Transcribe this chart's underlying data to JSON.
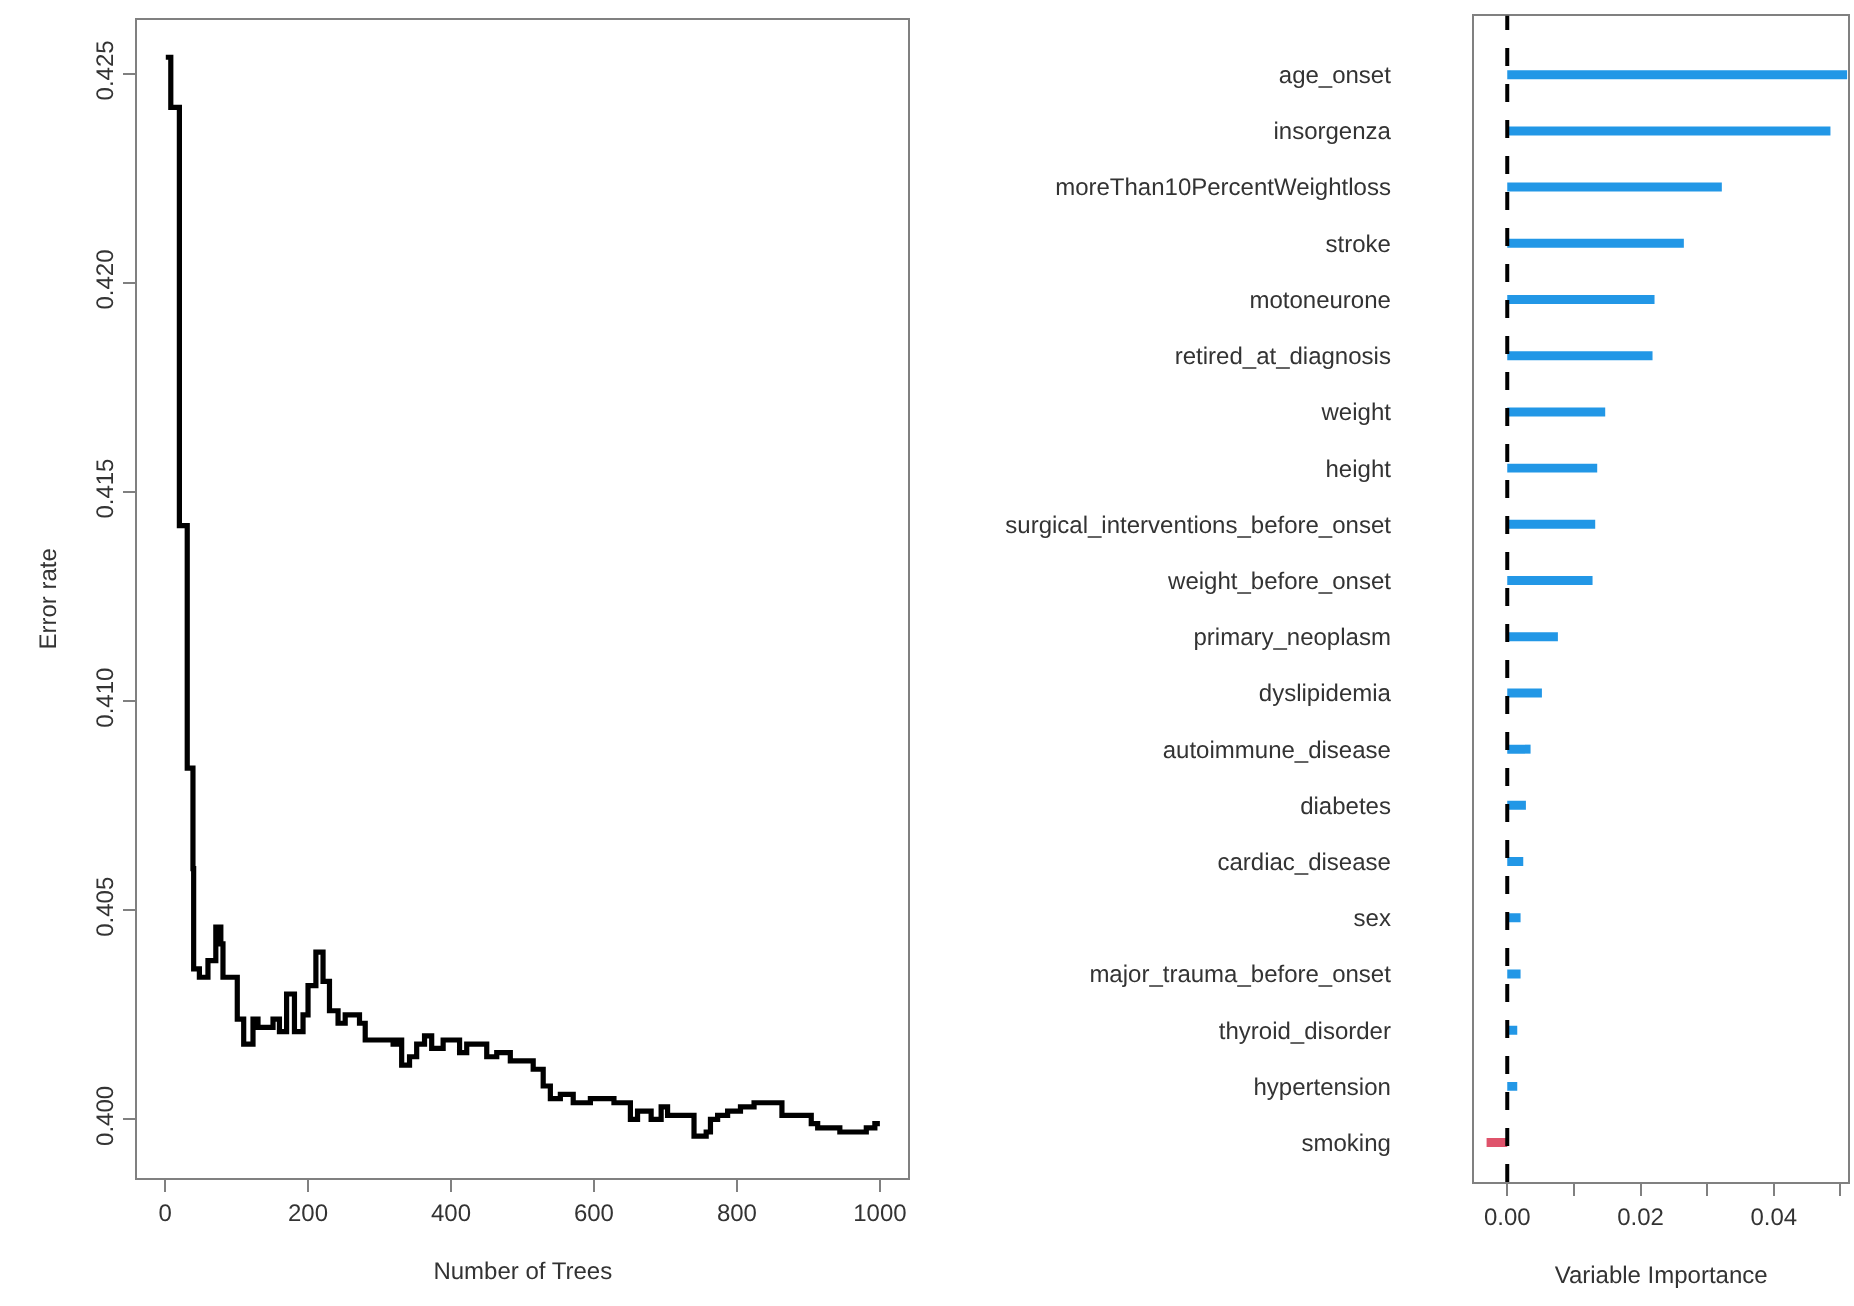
{
  "chart_data": [
    {
      "type": "step",
      "xlabel": "Number of Trees",
      "ylabel": "Error rate",
      "marker": "none",
      "line_style": "solid",
      "xlim": [
        -39,
        1040
      ],
      "xticks": [
        0,
        200,
        400,
        600,
        800,
        1000
      ],
      "ylim": [
        0.3986,
        0.4263
      ],
      "yticks": [
        {
          "value": 0.4,
          "label": "0.400"
        },
        {
          "value": 0.405,
          "label": "0.405"
        },
        {
          "value": 0.41,
          "label": "0.410"
        },
        {
          "value": 0.415,
          "label": "0.415"
        },
        {
          "value": 0.42,
          "label": "0.420"
        },
        {
          "value": 0.425,
          "label": "0.425"
        }
      ],
      "series": [
        {
          "color": "#000000",
          "x": [
            1,
            8,
            20,
            31,
            39,
            40,
            48,
            60,
            71,
            78,
            81,
            101,
            110,
            123,
            130,
            151,
            160,
            170,
            181,
            193,
            200,
            211,
            221,
            230,
            242,
            252,
            272,
            280,
            319,
            326,
            331,
            342,
            352,
            363,
            373,
            389,
            412,
            422,
            433,
            450,
            464,
            483,
            506,
            515,
            529,
            539,
            553,
            571,
            595,
            628,
            651,
            661,
            680,
            694,
            703,
            731,
            740,
            757,
            763,
            773,
            787,
            796,
            805,
            824,
            863,
            871,
            904,
            913,
            927,
            944,
            981,
            993,
            1000
          ],
          "values": [
            0.4254,
            0.4242,
            0.4142,
            0.4084,
            0.406,
            0.4036,
            0.4034,
            0.4038,
            0.4046,
            0.4042,
            0.4034,
            0.4024,
            0.4018,
            0.4024,
            0.4022,
            0.4024,
            0.4021,
            0.403,
            0.4021,
            0.4025,
            0.4032,
            0.404,
            0.4033,
            0.4026,
            0.4023,
            0.4025,
            0.4023,
            0.4019,
            0.4018,
            0.4019,
            0.4013,
            0.4015,
            0.4018,
            0.402,
            0.4017,
            0.4019,
            0.4016,
            0.4018,
            0.4018,
            0.4015,
            0.4016,
            0.4014,
            0.4014,
            0.4012,
            0.4008,
            0.4005,
            0.4006,
            0.4004,
            0.4005,
            0.4004,
            0.4,
            0.4002,
            0.4,
            0.4003,
            0.4001,
            0.4001,
            0.3996,
            0.3997,
            0.4,
            0.4001,
            0.4002,
            0.4002,
            0.4003,
            0.4004,
            0.4001,
            0.4001,
            0.3999,
            0.3998,
            0.3998,
            0.3997,
            0.3998,
            0.3999,
            0.3999
          ]
        }
      ]
    },
    {
      "type": "bar",
      "orientation": "horizontal",
      "xlabel": "Variable Importance",
      "categories": [
        "age_onset",
        "insorgenza",
        "moreThan10PercentWeightloss",
        "stroke",
        "motoneurone",
        "retired_at_diagnosis",
        "weight",
        "height",
        "surgical_interventions_before_onset",
        "weight_before_onset",
        "primary_neoplasm",
        "dyslipidemia",
        "autoimmune_disease",
        "diabetes",
        "cardiac_disease",
        "sex",
        "major_trauma_before_onset",
        "thyroid_disorder",
        "hypertension",
        "smoking"
      ],
      "values": [
        0.051,
        0.0485,
        0.0322,
        0.0265,
        0.0221,
        0.0218,
        0.0147,
        0.0135,
        0.0132,
        0.0128,
        0.0076,
        0.0052,
        0.0035,
        0.0028,
        0.0024,
        0.002,
        0.002,
        0.0015,
        0.0015,
        -0.0031
      ],
      "colors": [
        "#2297e6",
        "#2297e6",
        "#2297e6",
        "#2297e6",
        "#2297e6",
        "#2297e6",
        "#2297e6",
        "#2297e6",
        "#2297e6",
        "#2297e6",
        "#2297e6",
        "#2297e6",
        "#2297e6",
        "#2297e6",
        "#2297e6",
        "#2297e6",
        "#2297e6",
        "#2297e6",
        "#2297e6",
        "#df536b"
      ],
      "xlim": [
        -0.005,
        0.0512
      ],
      "xticks": [
        {
          "value": 0,
          "label": "0.00"
        },
        {
          "value": 0.01,
          "label": null
        },
        {
          "value": 0.02,
          "label": "0.02"
        },
        {
          "value": 0.03,
          "label": null
        },
        {
          "value": 0.04,
          "label": "0.04"
        },
        {
          "value": 0.05,
          "label": null
        }
      ],
      "ref_lines": [
        {
          "axis": "x",
          "value": 0,
          "color": "#000000",
          "line_style": "dashed"
        }
      ]
    }
  ]
}
